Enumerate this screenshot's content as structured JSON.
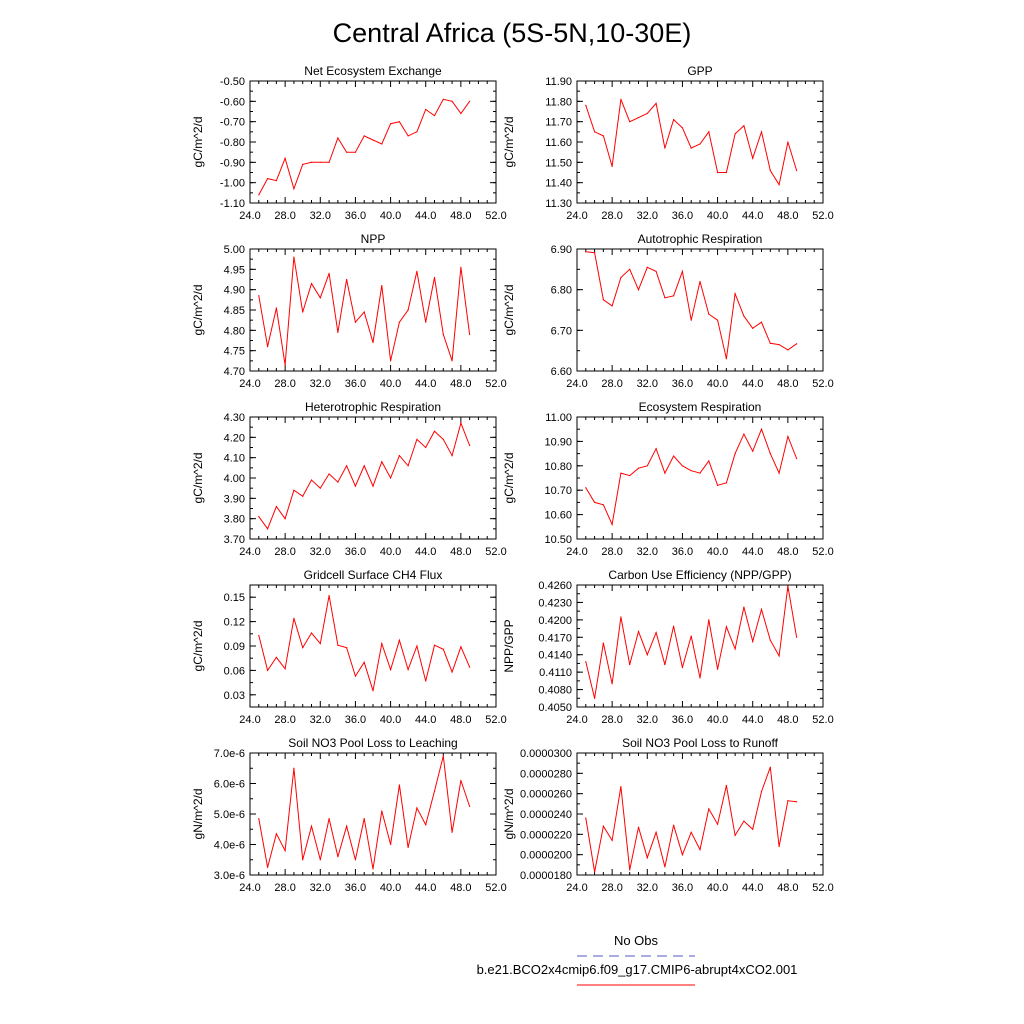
{
  "title": "Central Africa (5S-5N,10-30E)",
  "legend": {
    "placement": "bottom-right",
    "obs_label": "No Obs",
    "model_label": "b.e21.BCO2x4cmip6.f09_g17.CMIP6-abrupt4xCO2.001",
    "obs_color": "#5555cc",
    "model_color": "#ff0000"
  },
  "chart_data": [
    {
      "type": "line",
      "title": "Net Ecosystem Exchange",
      "ylabel": "gC/m^2/d",
      "xlim": [
        24,
        52
      ],
      "xticks": [
        "24.0",
        "28.0",
        "32.0",
        "36.0",
        "40.0",
        "44.0",
        "48.0",
        "52.0"
      ],
      "ylim": [
        -1.1,
        -0.5
      ],
      "yticks": [
        "-1.10",
        "-1.00",
        "-0.90",
        "-0.80",
        "-0.70",
        "-0.60",
        "-0.50"
      ],
      "x": [
        25,
        26,
        27,
        28,
        29,
        30,
        31,
        32,
        33,
        34,
        35,
        36,
        37,
        38,
        39,
        40,
        41,
        42,
        43,
        44,
        45,
        46,
        47,
        48,
        49
      ],
      "values": [
        -1.06,
        -0.98,
        -0.99,
        -0.88,
        -1.03,
        -0.91,
        -0.9,
        -0.9,
        -0.9,
        -0.78,
        -0.85,
        -0.85,
        -0.77,
        -0.79,
        -0.81,
        -0.71,
        -0.7,
        -0.77,
        -0.75,
        -0.64,
        -0.67,
        -0.59,
        -0.6,
        -0.66,
        -0.6
      ]
    },
    {
      "type": "line",
      "title": "GPP",
      "ylabel": "gC/m^2/d",
      "xlim": [
        24,
        52
      ],
      "xticks": [
        "24.0",
        "28.0",
        "32.0",
        "36.0",
        "40.0",
        "44.0",
        "48.0",
        "52.0"
      ],
      "ylim": [
        11.3,
        11.9
      ],
      "yticks": [
        "11.30",
        "11.40",
        "11.50",
        "11.60",
        "11.70",
        "11.80",
        "11.90"
      ],
      "x": [
        25,
        26,
        27,
        28,
        29,
        30,
        31,
        32,
        33,
        34,
        35,
        36,
        37,
        38,
        39,
        40,
        41,
        42,
        43,
        44,
        45,
        46,
        47,
        48,
        49
      ],
      "values": [
        11.78,
        11.65,
        11.63,
        11.48,
        11.81,
        11.7,
        11.72,
        11.74,
        11.79,
        11.57,
        11.71,
        11.67,
        11.57,
        11.59,
        11.65,
        11.45,
        11.45,
        11.64,
        11.68,
        11.52,
        11.65,
        11.46,
        11.39,
        11.6,
        11.46
      ]
    },
    {
      "type": "line",
      "title": "NPP",
      "ylabel": "gC/m^2/d",
      "xlim": [
        24,
        52
      ],
      "xticks": [
        "24.0",
        "28.0",
        "32.0",
        "36.0",
        "40.0",
        "44.0",
        "48.0",
        "52.0"
      ],
      "ylim": [
        4.7,
        5.0
      ],
      "yticks": [
        "4.70",
        "4.75",
        "4.80",
        "4.85",
        "4.90",
        "4.95",
        "5.00"
      ],
      "x": [
        25,
        26,
        27,
        28,
        29,
        30,
        31,
        32,
        33,
        34,
        35,
        36,
        37,
        38,
        39,
        40,
        41,
        42,
        43,
        44,
        45,
        46,
        47,
        48,
        49
      ],
      "values": [
        4.885,
        4.76,
        4.855,
        4.715,
        4.98,
        4.845,
        4.915,
        4.88,
        4.94,
        4.795,
        4.925,
        4.82,
        4.845,
        4.77,
        4.91,
        4.725,
        4.82,
        4.85,
        4.945,
        4.82,
        4.93,
        4.79,
        4.725,
        4.955,
        4.79
      ]
    },
    {
      "type": "line",
      "title": "Autotrophic Respiration",
      "ylabel": "gC/m^2/d",
      "xlim": [
        24,
        52
      ],
      "xticks": [
        "24.0",
        "28.0",
        "32.0",
        "36.0",
        "40.0",
        "44.0",
        "48.0",
        "52.0"
      ],
      "ylim": [
        6.6,
        6.9
      ],
      "yticks": [
        "6.60",
        "6.70",
        "6.80",
        "6.90"
      ],
      "x": [
        25,
        26,
        27,
        28,
        29,
        30,
        31,
        32,
        33,
        34,
        35,
        36,
        37,
        38,
        39,
        40,
        41,
        42,
        43,
        44,
        45,
        46,
        47,
        48,
        49
      ],
      "values": [
        6.893,
        6.891,
        6.775,
        6.76,
        6.83,
        6.85,
        6.8,
        6.855,
        6.845,
        6.78,
        6.785,
        6.845,
        6.725,
        6.82,
        6.74,
        6.725,
        6.63,
        6.79,
        6.735,
        6.705,
        6.72,
        6.668,
        6.665,
        6.652,
        6.667
      ]
    },
    {
      "type": "line",
      "title": "Heterotrophic Respiration",
      "ylabel": "gC/m^2/d",
      "xlim": [
        24,
        52
      ],
      "xticks": [
        "24.0",
        "28.0",
        "32.0",
        "36.0",
        "40.0",
        "44.0",
        "48.0",
        "52.0"
      ],
      "ylim": [
        3.7,
        4.3
      ],
      "yticks": [
        "3.70",
        "3.80",
        "3.90",
        "4.00",
        "4.10",
        "4.20",
        "4.30"
      ],
      "x": [
        25,
        26,
        27,
        28,
        29,
        30,
        31,
        32,
        33,
        34,
        35,
        36,
        37,
        38,
        39,
        40,
        41,
        42,
        43,
        44,
        45,
        46,
        47,
        48,
        49
      ],
      "values": [
        3.81,
        3.75,
        3.86,
        3.8,
        3.94,
        3.91,
        3.99,
        3.95,
        4.02,
        3.98,
        4.06,
        3.96,
        4.06,
        3.96,
        4.08,
        4.0,
        4.11,
        4.06,
        4.19,
        4.15,
        4.23,
        4.19,
        4.11,
        4.27,
        4.16
      ]
    },
    {
      "type": "line",
      "title": "Ecosystem Respiration",
      "ylabel": "gC/m^2/d",
      "xlim": [
        24,
        52
      ],
      "xticks": [
        "24.0",
        "28.0",
        "32.0",
        "36.0",
        "40.0",
        "44.0",
        "48.0",
        "52.0"
      ],
      "ylim": [
        10.5,
        11.0
      ],
      "yticks": [
        "10.50",
        "10.60",
        "10.70",
        "10.80",
        "10.90",
        "11.00"
      ],
      "x": [
        25,
        26,
        27,
        28,
        29,
        30,
        31,
        32,
        33,
        34,
        35,
        36,
        37,
        38,
        39,
        40,
        41,
        42,
        43,
        44,
        45,
        46,
        47,
        48,
        49
      ],
      "values": [
        10.71,
        10.65,
        10.64,
        10.56,
        10.77,
        10.76,
        10.79,
        10.8,
        10.87,
        10.77,
        10.84,
        10.8,
        10.78,
        10.77,
        10.82,
        10.72,
        10.73,
        10.85,
        10.93,
        10.86,
        10.95,
        10.85,
        10.77,
        10.92,
        10.83
      ]
    },
    {
      "type": "line",
      "title": "Gridcell Surface CH4 Flux",
      "ylabel": "gC/m^2/d",
      "xlim": [
        24,
        52
      ],
      "xticks": [
        "24.0",
        "28.0",
        "32.0",
        "36.0",
        "40.0",
        "44.0",
        "48.0",
        "52.0"
      ],
      "ylim": [
        0.015,
        0.165
      ],
      "yticks": [
        "0.03",
        "0.06",
        "0.09",
        "0.12",
        "0.15"
      ],
      "x": [
        25,
        26,
        27,
        28,
        29,
        30,
        31,
        32,
        33,
        34,
        35,
        36,
        37,
        38,
        39,
        40,
        41,
        42,
        43,
        44,
        45,
        46,
        47,
        48,
        49
      ],
      "values": [
        0.103,
        0.06,
        0.076,
        0.062,
        0.124,
        0.088,
        0.106,
        0.093,
        0.152,
        0.091,
        0.088,
        0.053,
        0.07,
        0.035,
        0.093,
        0.061,
        0.097,
        0.061,
        0.09,
        0.047,
        0.091,
        0.086,
        0.058,
        0.089,
        0.064
      ]
    },
    {
      "type": "line",
      "title": "Carbon Use Efficiency (NPP/GPP)",
      "ylabel": "NPP/GPP",
      "xlim": [
        24,
        52
      ],
      "xticks": [
        "24.0",
        "28.0",
        "32.0",
        "36.0",
        "40.0",
        "44.0",
        "48.0",
        "52.0"
      ],
      "ylim": [
        0.405,
        0.426
      ],
      "yticks": [
        "0.4050",
        "0.4080",
        "0.4110",
        "0.4140",
        "0.4170",
        "0.4200",
        "0.4230",
        "0.4260"
      ],
      "x": [
        25,
        26,
        27,
        28,
        29,
        30,
        31,
        32,
        33,
        34,
        35,
        36,
        37,
        38,
        39,
        40,
        41,
        42,
        43,
        44,
        45,
        46,
        47,
        48,
        49
      ],
      "values": [
        0.4128,
        0.4065,
        0.416,
        0.409,
        0.4205,
        0.4123,
        0.418,
        0.414,
        0.4178,
        0.4123,
        0.4189,
        0.4118,
        0.4172,
        0.41,
        0.42,
        0.4115,
        0.4188,
        0.415,
        0.4222,
        0.4163,
        0.4218,
        0.4165,
        0.4138,
        0.4258,
        0.417
      ]
    },
    {
      "type": "line",
      "title": "Soil NO3 Pool Loss to Leaching",
      "ylabel": "gN/m^2/d",
      "xlim": [
        24,
        52
      ],
      "xticks": [
        "24.0",
        "28.0",
        "32.0",
        "36.0",
        "40.0",
        "44.0",
        "48.0",
        "52.0"
      ],
      "ylim": [
        3e-06,
        7e-06
      ],
      "yticks": [
        "3.0e-6",
        "4.0e-6",
        "5.0e-6",
        "6.0e-6",
        "7.0e-6"
      ],
      "x": [
        25,
        26,
        27,
        28,
        29,
        30,
        31,
        32,
        33,
        34,
        35,
        36,
        37,
        38,
        39,
        40,
        41,
        42,
        43,
        44,
        45,
        46,
        47,
        48,
        49
      ],
      "values": [
        4.85e-06,
        3.25e-06,
        4.35e-06,
        3.8e-06,
        6.5e-06,
        3.5e-06,
        4.6e-06,
        3.5e-06,
        4.85e-06,
        3.6e-06,
        4.6e-06,
        3.5e-06,
        4.85e-06,
        3.2e-06,
        5.1e-06,
        4e-06,
        5.95e-06,
        3.9e-06,
        5.2e-06,
        4.65e-06,
        5.75e-06,
        6.9e-06,
        4.4e-06,
        6.1e-06,
        5.25e-06
      ]
    },
    {
      "type": "line",
      "title": "Soil NO3 Pool Loss to Runoff",
      "ylabel": "gN/m^2/d",
      "xlim": [
        24,
        52
      ],
      "xticks": [
        "24.0",
        "28.0",
        "32.0",
        "36.0",
        "40.0",
        "44.0",
        "48.0",
        "52.0"
      ],
      "ylim": [
        1.8e-05,
        3e-05
      ],
      "yticks": [
        "0.0000180",
        "0.0000200",
        "0.0000220",
        "0.0000240",
        "0.0000260",
        "0.0000280",
        "0.0000300"
      ],
      "x": [
        25,
        26,
        27,
        28,
        29,
        30,
        31,
        32,
        33,
        34,
        35,
        36,
        37,
        38,
        39,
        40,
        41,
        42,
        43,
        44,
        45,
        46,
        47,
        48,
        49
      ],
      "values": [
        2.36e-05,
        1.83e-05,
        2.28e-05,
        2.14e-05,
        2.67e-05,
        1.85e-05,
        2.27e-05,
        1.97e-05,
        2.22e-05,
        1.88e-05,
        2.29e-05,
        2e-05,
        2.22e-05,
        2.05e-05,
        2.45e-05,
        2.3e-05,
        2.68e-05,
        2.19e-05,
        2.33e-05,
        2.25e-05,
        2.62e-05,
        2.86e-05,
        2.08e-05,
        2.53e-05,
        2.52e-05
      ]
    }
  ]
}
